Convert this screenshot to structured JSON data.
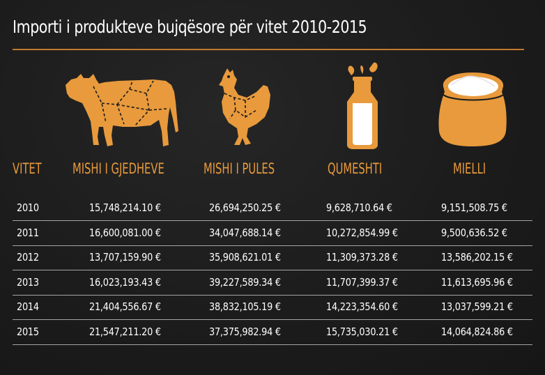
{
  "title": "Importi i produkteve bujqësore për vitet 2010-2015",
  "colors": {
    "accent": "#e89a3c",
    "background": "#1b1b1b",
    "text": "#ffffff"
  },
  "icons": [
    "cow-icon",
    "chicken-icon",
    "milk-bottle-icon",
    "flour-sack-icon"
  ],
  "chart_data": {
    "type": "table",
    "columns": [
      "VITET",
      "MISHI I GJEDHEVE",
      "MISHI I PULES",
      "QUMESHTI",
      "MIELLI"
    ],
    "rows": [
      [
        "2010",
        "15,748,214.10 €",
        "26,694,250.25 €",
        "9,628,710.64 €",
        "9,151,508.75 €"
      ],
      [
        "2011",
        "16,600,081.00 €",
        "34,047,688.14 €",
        "10,272,854.99 €",
        "9,500,636.52 €"
      ],
      [
        "2012",
        "13,707,159.90 €",
        "35,908,621.01 €",
        "11,309,373.28 €",
        "13,586,202.15 €"
      ],
      [
        "2013",
        "16,023,193.43 €",
        "39,227,589.34 €",
        "11,707,399.37 €",
        "11,613,695.96 €"
      ],
      [
        "2014",
        "21,404,556.67 €",
        "38,832,105.19 €",
        "14,223,354.60 €",
        "13,037,599.21 €"
      ],
      [
        "2015",
        "21,547,211.20 €",
        "37,375,982.94 €",
        "15,735,030.21 €",
        "14,064,824.86 €"
      ]
    ]
  }
}
